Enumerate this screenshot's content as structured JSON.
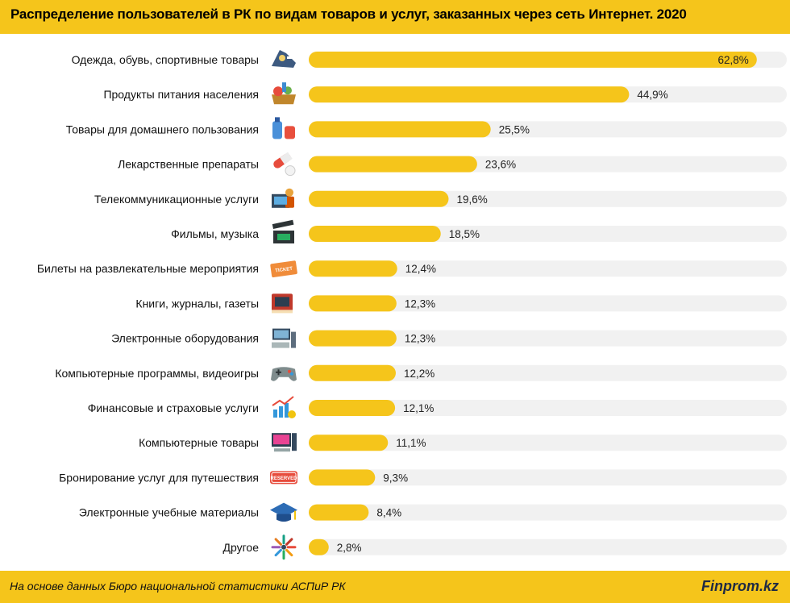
{
  "header": {
    "title": "Распределение пользователей в РК по видам товаров и услуг, заказанных через сеть Интернет. 2020"
  },
  "footer": {
    "source": "На основе данных  Бюро национальной  статистики АСПиР РК",
    "brand": "Finprom.kz"
  },
  "colors": {
    "bar": "#f5c51b",
    "track": "#f1f1f1",
    "header": "#f5c51b"
  },
  "chart_data": {
    "type": "bar",
    "orientation": "horizontal",
    "title": "Распределение пользователей в РК по видам товаров и услуг, заказанных через сеть Интернет. 2020",
    "value_suffix": "%",
    "xlim": [
      0,
      67
    ],
    "categories": [
      "Одежда, обувь, спортивные товары",
      "Продукты питания населения",
      "Товары для домашнего пользования",
      "Лекарственные препараты",
      "Телекоммуникационные услуги",
      "Фильмы, музыка",
      "Билеты на развлекательные мероприятия",
      "Книги, журналы, газеты",
      "Электронные оборудования",
      "Компьютерные программы, видеоигры",
      "Финансовые и страховые услуги",
      "Компьютерные товары",
      "Бронирование услуг для путешествия",
      "Электронные учебные материалы",
      "Другое"
    ],
    "values": [
      62.8,
      44.9,
      25.5,
      23.6,
      19.6,
      18.5,
      12.4,
      12.3,
      12.3,
      12.2,
      12.1,
      11.1,
      9.3,
      8.4,
      2.8
    ],
    "value_labels": [
      "62,8%",
      "44,9%",
      "25,5%",
      "23,6%",
      "19,6%",
      "18,5%",
      "12,4%",
      "12,3%",
      "12,3%",
      "12,2%",
      "12,1%",
      "11,1%",
      "9,3%",
      "8,4%",
      "2,8%"
    ],
    "icons": [
      "clothing-shoes-icon",
      "groceries-icon",
      "household-goods-icon",
      "medicine-pills-icon",
      "telecom-icon",
      "film-clapper-icon",
      "ticket-icon",
      "books-icon",
      "electronics-icon",
      "gamepad-icon",
      "finance-chart-icon",
      "computer-icon",
      "reserved-sign-icon",
      "graduation-cap-icon",
      "arrows-other-icon"
    ],
    "icon_texts": {
      "ticket-icon": "TICKET",
      "reserved-sign-icon": "RESERVED"
    },
    "grid": false,
    "legend": "none"
  }
}
